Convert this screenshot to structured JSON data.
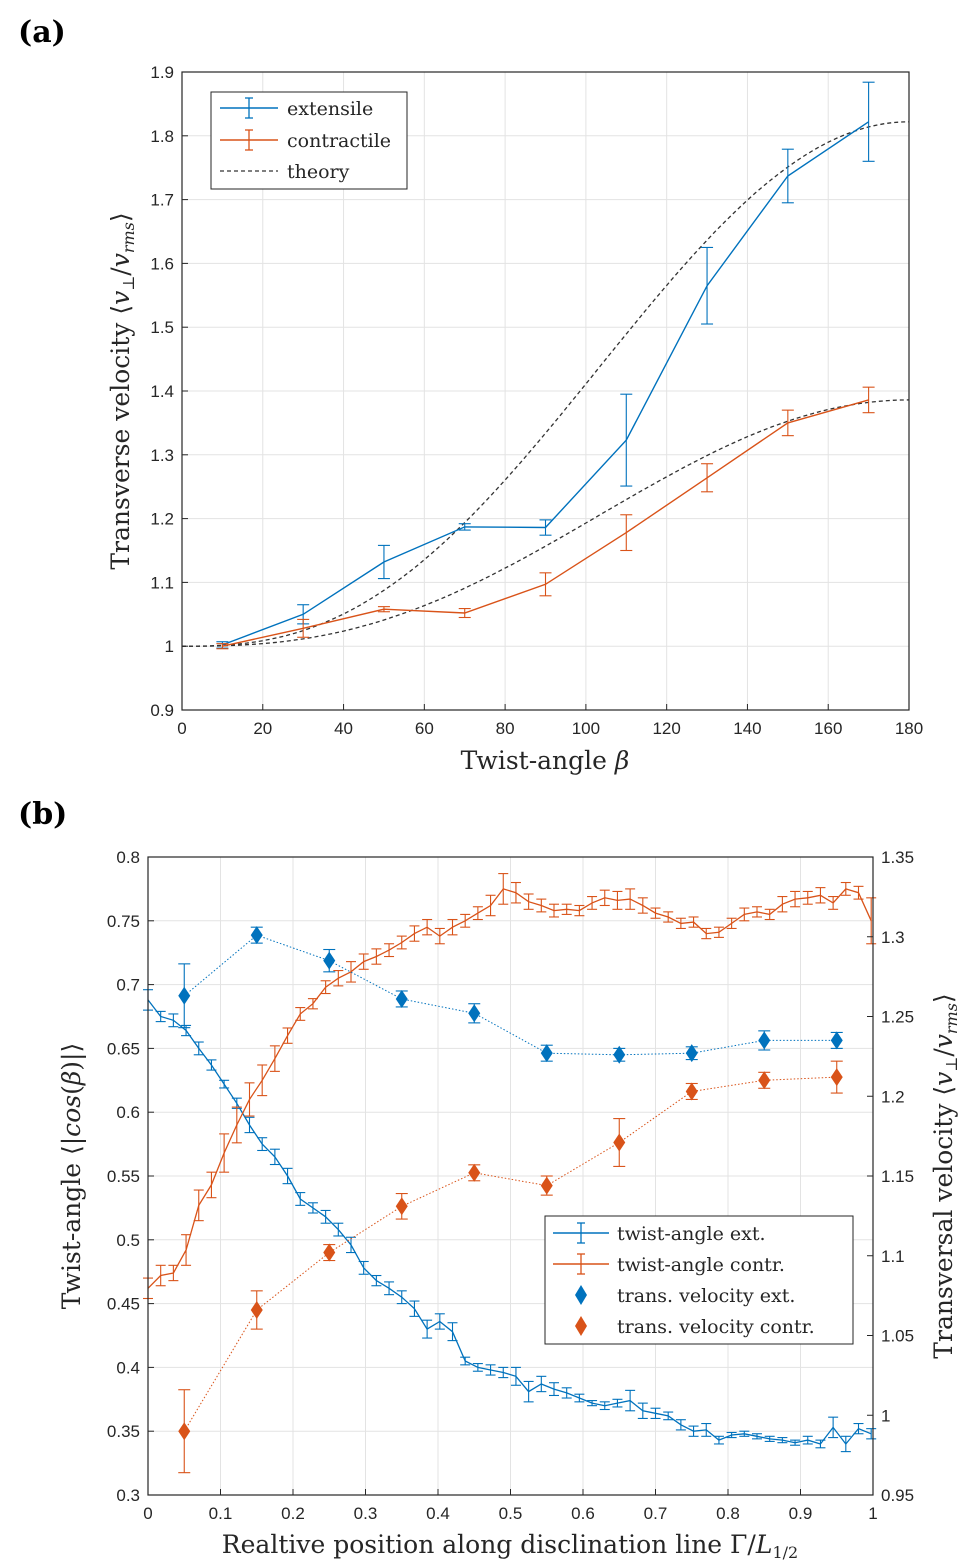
{
  "colors": {
    "blue": "#0072BD",
    "orange": "#D95319",
    "theory": "#333333"
  },
  "chart_data": [
    {
      "panel_label": "(a)",
      "type": "line",
      "xlabel": "Twist-angle β",
      "ylabel": "Transverse velocity ⟨v⊥/vrms⟩",
      "xlim": [
        0,
        180
      ],
      "ylim": [
        0.9,
        1.9
      ],
      "xticks": [
        "0",
        "20",
        "40",
        "60",
        "80",
        "100",
        "120",
        "140",
        "160",
        "180"
      ],
      "yticks": [
        "0.9",
        "1",
        "1.1",
        "1.2",
        "1.3",
        "1.4",
        "1.5",
        "1.6",
        "1.7",
        "1.8",
        "1.9"
      ],
      "grid": true,
      "legend_position": "top-left",
      "legend": [
        "extensile",
        "contractile",
        "theory"
      ],
      "x": [
        10,
        30,
        50,
        70,
        90,
        110,
        130,
        150,
        170
      ],
      "series": [
        {
          "name": "extensile",
          "values": [
            1.002,
            1.05,
            1.132,
            1.187,
            1.186,
            1.323,
            1.565,
            1.737,
            1.822
          ],
          "err": [
            0.005,
            0.015,
            0.026,
            0.005,
            0.012,
            0.072,
            0.06,
            0.042,
            0.062
          ]
        },
        {
          "name": "contractile",
          "values": [
            1.0,
            1.028,
            1.058,
            1.052,
            1.097,
            1.178,
            1.264,
            1.35,
            1.386
          ],
          "err": [
            0.004,
            0.014,
            0.004,
            0.007,
            0.018,
            0.028,
            0.022,
            0.02,
            0.02
          ]
        },
        {
          "name": "theory",
          "theory_baseline": 1.0,
          "theory_max": [
            1.822,
            1.386
          ]
        }
      ]
    },
    {
      "panel_label": "(b)",
      "type": "line",
      "xlabel": "Realtive position along disclination line Γ/L1/2",
      "ylabel": "Twist-angle ⟨|cos(β)|⟩",
      "ylabel_right": "Transversal velocity ⟨v⊥/vrms⟩",
      "xlim": [
        0,
        1
      ],
      "ylim": [
        0.3,
        0.8
      ],
      "ylim_right": [
        0.95,
        1.35
      ],
      "xticks": [
        "0",
        "0.1",
        "0.2",
        "0.3",
        "0.4",
        "0.5",
        "0.6",
        "0.7",
        "0.8",
        "0.9",
        "1"
      ],
      "yticks": [
        "0.3",
        "0.35",
        "0.4",
        "0.45",
        "0.5",
        "0.55",
        "0.6",
        "0.65",
        "0.7",
        "0.75",
        "0.8"
      ],
      "yticks_right": [
        "0.95",
        "1",
        "1.05",
        "1.1",
        "1.15",
        "1.2",
        "1.25",
        "1.3",
        "1.35"
      ],
      "grid": true,
      "legend_position": "bottom-right",
      "legend": [
        "twist-angle ext.",
        "twist-angle contr.",
        "trans. velocity ext.",
        "trans. velocity contr."
      ],
      "x": [
        0.0,
        0.0175,
        0.035,
        0.0525,
        0.07,
        0.0875,
        0.105,
        0.1225,
        0.14,
        0.1575,
        0.175,
        0.1925,
        0.21,
        0.2275,
        0.245,
        0.2625,
        0.28,
        0.2975,
        0.315,
        0.3325,
        0.35,
        0.3675,
        0.385,
        0.4025,
        0.42,
        0.4375,
        0.455,
        0.4725,
        0.49,
        0.5075,
        0.525,
        0.5425,
        0.56,
        0.5775,
        0.595,
        0.6125,
        0.63,
        0.6475,
        0.665,
        0.6825,
        0.7,
        0.7175,
        0.735,
        0.7525,
        0.77,
        0.7875,
        0.805,
        0.8225,
        0.84,
        0.8575,
        0.875,
        0.8925,
        0.91,
        0.9275,
        0.945,
        0.9625,
        0.98,
        0.9975
      ],
      "series": [
        {
          "name": "twist-angle ext.",
          "values": [
            0.688,
            0.675,
            0.672,
            0.664,
            0.65,
            0.637,
            0.622,
            0.607,
            0.59,
            0.575,
            0.565,
            0.55,
            0.532,
            0.525,
            0.518,
            0.508,
            0.496,
            0.478,
            0.468,
            0.462,
            0.455,
            0.446,
            0.43,
            0.436,
            0.428,
            0.405,
            0.4,
            0.398,
            0.396,
            0.393,
            0.381,
            0.387,
            0.383,
            0.38,
            0.376,
            0.372,
            0.37,
            0.372,
            0.374,
            0.366,
            0.364,
            0.362,
            0.355,
            0.35,
            0.351,
            0.343,
            0.347,
            0.348,
            0.346,
            0.344,
            0.343,
            0.341,
            0.343,
            0.34,
            0.353,
            0.34,
            0.352,
            0.348
          ],
          "err": [
            0.008,
            0.004,
            0.005,
            0.004,
            0.005,
            0.004,
            0.003,
            0.004,
            0.006,
            0.005,
            0.006,
            0.006,
            0.005,
            0.004,
            0.005,
            0.005,
            0.006,
            0.005,
            0.004,
            0.005,
            0.005,
            0.006,
            0.007,
            0.006,
            0.007,
            0.003,
            0.003,
            0.004,
            0.004,
            0.007,
            0.008,
            0.006,
            0.005,
            0.004,
            0.003,
            0.002,
            0.003,
            0.003,
            0.008,
            0.006,
            0.004,
            0.003,
            0.004,
            0.004,
            0.005,
            0.003,
            0.002,
            0.002,
            0.002,
            0.002,
            0.002,
            0.002,
            0.003,
            0.003,
            0.008,
            0.006,
            0.004,
            0.004
          ]
        },
        {
          "name": "twist-angle contr.",
          "values": [
            0.462,
            0.472,
            0.474,
            0.492,
            0.527,
            0.543,
            0.568,
            0.59,
            0.61,
            0.625,
            0.642,
            0.66,
            0.677,
            0.685,
            0.698,
            0.705,
            0.71,
            0.718,
            0.722,
            0.727,
            0.733,
            0.74,
            0.745,
            0.738,
            0.745,
            0.75,
            0.756,
            0.762,
            0.775,
            0.772,
            0.765,
            0.762,
            0.758,
            0.759,
            0.758,
            0.764,
            0.768,
            0.766,
            0.767,
            0.762,
            0.756,
            0.753,
            0.748,
            0.749,
            0.74,
            0.741,
            0.748,
            0.755,
            0.757,
            0.755,
            0.763,
            0.767,
            0.768,
            0.77,
            0.764,
            0.775,
            0.772,
            0.75
          ],
          "err": [
            0.008,
            0.008,
            0.006,
            0.012,
            0.012,
            0.01,
            0.015,
            0.014,
            0.013,
            0.012,
            0.01,
            0.006,
            0.005,
            0.004,
            0.005,
            0.006,
            0.008,
            0.006,
            0.006,
            0.005,
            0.005,
            0.006,
            0.006,
            0.006,
            0.006,
            0.005,
            0.005,
            0.008,
            0.012,
            0.008,
            0.006,
            0.005,
            0.005,
            0.004,
            0.004,
            0.005,
            0.006,
            0.007,
            0.008,
            0.006,
            0.004,
            0.004,
            0.004,
            0.004,
            0.004,
            0.004,
            0.004,
            0.005,
            0.004,
            0.004,
            0.006,
            0.006,
            0.005,
            0.006,
            0.005,
            0.005,
            0.005,
            0.018
          ]
        },
        {
          "name": "trans. velocity ext.",
          "axis": "right",
          "x": [
            0.05,
            0.15,
            0.25,
            0.35,
            0.45,
            0.55,
            0.65,
            0.75,
            0.85,
            0.95
          ],
          "values": [
            1.263,
            1.301,
            1.285,
            1.261,
            1.252,
            1.227,
            1.226,
            1.227,
            1.235,
            1.235
          ],
          "err": [
            0.02,
            0.005,
            0.007,
            0.005,
            0.006,
            0.005,
            0.004,
            0.004,
            0.006,
            0.005
          ]
        },
        {
          "name": "trans. velocity contr.",
          "axis": "right",
          "x": [
            0.05,
            0.15,
            0.25,
            0.35,
            0.45,
            0.55,
            0.65,
            0.75,
            0.85,
            0.95
          ],
          "values": [
            0.99,
            1.066,
            1.102,
            1.131,
            1.152,
            1.144,
            1.171,
            1.203,
            1.21,
            1.212
          ],
          "err": [
            0.026,
            0.012,
            0.005,
            0.008,
            0.005,
            0.006,
            0.015,
            0.005,
            0.005,
            0.01
          ]
        }
      ]
    }
  ]
}
